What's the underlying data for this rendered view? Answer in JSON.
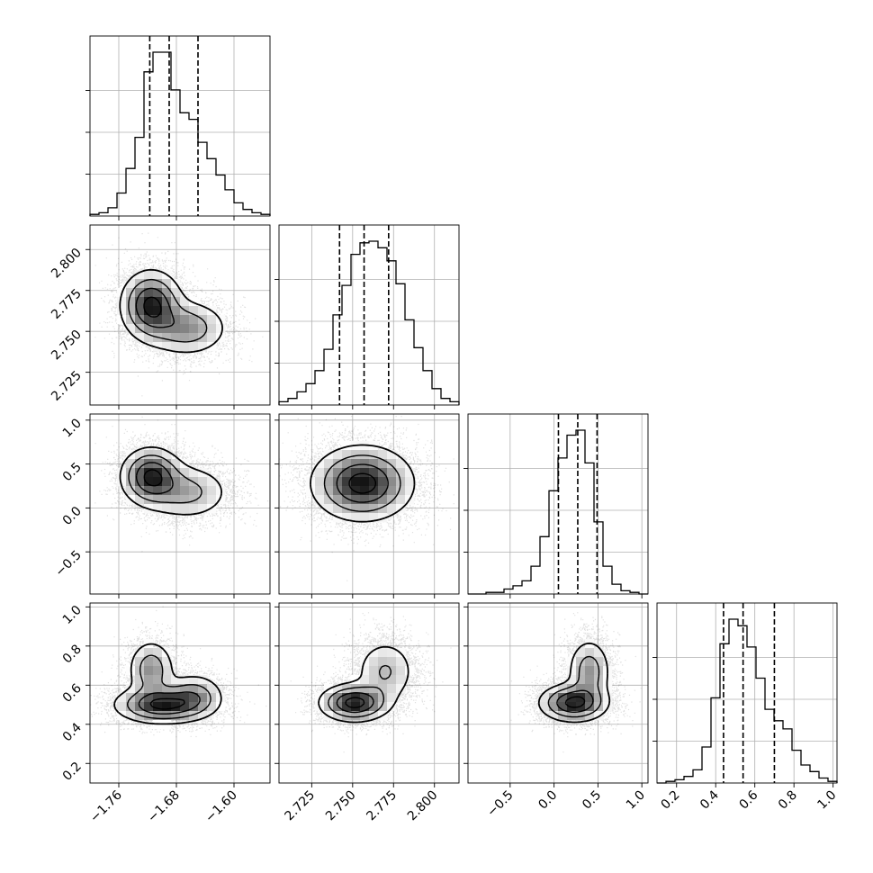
{
  "chart_data": {
    "type": "corner",
    "grid": true,
    "parameters": [
      {
        "range": [
          -1.8,
          -1.55
        ],
        "ticks": [
          -1.76,
          -1.68,
          -1.6
        ],
        "tick_labels": [
          "−1.76",
          "−1.68",
          "−1.60"
        ],
        "quantiles": [
          -1.717,
          -1.69,
          -1.65
        ],
        "hist_heights": [
          0.01,
          0.02,
          0.05,
          0.14,
          0.29,
          0.48,
          0.88,
          1.0,
          1.0,
          0.77,
          0.63,
          0.59,
          0.45,
          0.35,
          0.25,
          0.16,
          0.08,
          0.04,
          0.02,
          0.01
        ]
      },
      {
        "range": [
          2.705,
          2.815
        ],
        "ticks": [
          2.725,
          2.75,
          2.775,
          2.8
        ],
        "tick_labels": [
          "2.725",
          "2.750",
          "2.775",
          "2.800"
        ],
        "quantiles": [
          2.742,
          2.757,
          2.772
        ],
        "hist_heights": [
          0.02,
          0.04,
          0.08,
          0.13,
          0.21,
          0.34,
          0.55,
          0.73,
          0.92,
          0.99,
          1.0,
          0.96,
          0.88,
          0.74,
          0.52,
          0.35,
          0.21,
          0.1,
          0.04,
          0.02
        ]
      },
      {
        "range": [
          -0.98,
          1.07
        ],
        "ticks": [
          -0.5,
          0.0,
          0.5,
          1.0
        ],
        "tick_labels": [
          "−0.5",
          "0.0",
          "0.5",
          "1.0"
        ],
        "quantiles": [
          0.05,
          0.27,
          0.49
        ],
        "hist_heights": [
          0.0,
          0.0,
          0.01,
          0.01,
          0.03,
          0.05,
          0.08,
          0.17,
          0.35,
          0.63,
          0.83,
          0.97,
          1.0,
          0.8,
          0.44,
          0.17,
          0.06,
          0.02,
          0.01,
          0.0
        ]
      },
      {
        "range": [
          0.1,
          1.02
        ],
        "ticks": [
          0.2,
          0.4,
          0.6,
          0.8,
          1.0
        ],
        "tick_labels": [
          "0.2",
          "0.4",
          "0.6",
          "0.8",
          "1.0"
        ],
        "quantiles": [
          0.44,
          0.54,
          0.7
        ],
        "hist_heights": [
          0.0,
          0.01,
          0.02,
          0.04,
          0.08,
          0.22,
          0.52,
          0.85,
          1.0,
          0.96,
          0.83,
          0.64,
          0.45,
          0.38,
          0.33,
          0.2,
          0.11,
          0.07,
          0.03,
          0.01
        ]
      }
    ],
    "pairs": [
      {
        "x": 0,
        "y": 1,
        "clusters": [
          {
            "mx": -1.715,
            "my": 2.766,
            "sx": 0.022,
            "sy": 0.011,
            "w": 0.62
          },
          {
            "mx": -1.665,
            "my": 2.752,
            "sx": 0.03,
            "sy": 0.009,
            "w": 0.38
          }
        ]
      },
      {
        "x": 0,
        "y": 2,
        "clusters": [
          {
            "mx": -1.715,
            "my": 0.36,
            "sx": 0.022,
            "sy": 0.17,
            "w": 0.6
          },
          {
            "mx": -1.665,
            "my": 0.18,
            "sx": 0.032,
            "sy": 0.17,
            "w": 0.4
          }
        ]
      },
      {
        "x": 0,
        "y": 3,
        "clusters": [
          {
            "mx": -1.7,
            "my": 0.5,
            "sx": 0.034,
            "sy": 0.05,
            "w": 0.55
          },
          {
            "mx": -1.715,
            "my": 0.68,
            "sx": 0.017,
            "sy": 0.08,
            "w": 0.25
          },
          {
            "mx": -1.655,
            "my": 0.55,
            "sx": 0.022,
            "sy": 0.06,
            "w": 0.2
          }
        ]
      },
      {
        "x": 1,
        "y": 2,
        "clusters": [
          {
            "mx": 2.756,
            "my": 0.28,
            "sx": 0.016,
            "sy": 0.22,
            "w": 1.0
          }
        ]
      },
      {
        "x": 1,
        "y": 3,
        "clusters": [
          {
            "mx": 2.751,
            "my": 0.51,
            "sx": 0.011,
            "sy": 0.05,
            "w": 0.62
          },
          {
            "mx": 2.77,
            "my": 0.67,
            "sx": 0.01,
            "sy": 0.09,
            "w": 0.38
          }
        ]
      },
      {
        "x": 2,
        "y": 3,
        "clusters": [
          {
            "mx": 0.22,
            "my": 0.51,
            "sx": 0.2,
            "sy": 0.05,
            "w": 0.62
          },
          {
            "mx": 0.4,
            "my": 0.67,
            "sx": 0.13,
            "sy": 0.09,
            "w": 0.38
          }
        ]
      }
    ]
  },
  "colors": {
    "ink": "#000000",
    "grid": "#b0b0b0",
    "points": "#000000"
  }
}
